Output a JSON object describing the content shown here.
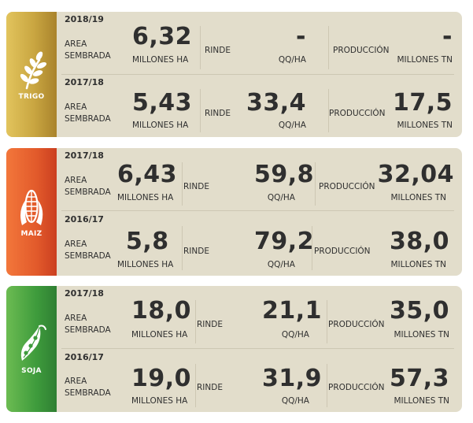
{
  "crops": [
    {
      "name": "TRIGO",
      "icon": "wheat-icon",
      "rows": [
        {
          "season": "2018/19",
          "area_label": "AREA SEMBRADA",
          "area_value": "6,32",
          "area_unit": "MILLONES HA",
          "rinde_label": "RINDE",
          "rinde_value": "-",
          "rinde_unit": "QQ/HA",
          "prod_label": "PRODUCCIÓN",
          "prod_value": "-",
          "prod_unit": "MILLONES TN"
        },
        {
          "season": "2017/18",
          "area_label": "AREA SEMBRADA",
          "area_value": "5,43",
          "area_unit": "MILLONES HA",
          "rinde_label": "RINDE",
          "rinde_value": "33,4",
          "rinde_unit": "QQ/HA",
          "prod_label": "PRODUCCIÓN",
          "prod_value": "17,5",
          "prod_unit": "MILLONES TN"
        }
      ]
    },
    {
      "name": "MAIZ",
      "icon": "corn-icon",
      "rows": [
        {
          "season": "2017/18",
          "area_label": "AREA SEMBRADA",
          "area_value": "6,43",
          "area_unit": "MILLONES HA",
          "rinde_label": "RINDE",
          "rinde_value": "59,8",
          "rinde_unit": "QQ/HA",
          "prod_label": "PRODUCCIÓN",
          "prod_value": "32,04",
          "prod_unit": "MILLONES TN"
        },
        {
          "season": "2016/17",
          "area_label": "AREA SEMBRADA",
          "area_value": "5,8",
          "area_unit": "MILLONES HA",
          "rinde_label": "RINDE",
          "rinde_value": "79,2",
          "rinde_unit": "QQ/HA",
          "prod_label": "PRODUCCIÓN",
          "prod_value": "38,0",
          "prod_unit": "MILLONES TN"
        }
      ]
    },
    {
      "name": "SOJA",
      "icon": "soybean-icon",
      "rows": [
        {
          "season": "2017/18",
          "area_label": "AREA SEMBRADA",
          "area_value": "18,0",
          "area_unit": "MILLONES HA",
          "rinde_label": "RINDE",
          "rinde_value": "21,1",
          "rinde_unit": "QQ/HA",
          "prod_label": "PRODUCCIÓN",
          "prod_value": "35,0",
          "prod_unit": "MILLONES TN"
        },
        {
          "season": "2016/17",
          "area_label": "AREA SEMBRADA",
          "area_value": "19,0",
          "area_unit": "MILLONES HA",
          "rinde_label": "RINDE",
          "rinde_value": "31,9",
          "rinde_unit": "QQ/HA",
          "prod_label": "PRODUCCIÓN",
          "prod_value": "57,3",
          "prod_unit": "MILLONES TN"
        }
      ]
    }
  ],
  "colors": {
    "card_background": "#e2ddcb",
    "trigo_badge": "#c9a641",
    "maiz_badge": "#e25a2b",
    "soja_badge": "#3e9b3c",
    "text": "#2f2f2f"
  }
}
